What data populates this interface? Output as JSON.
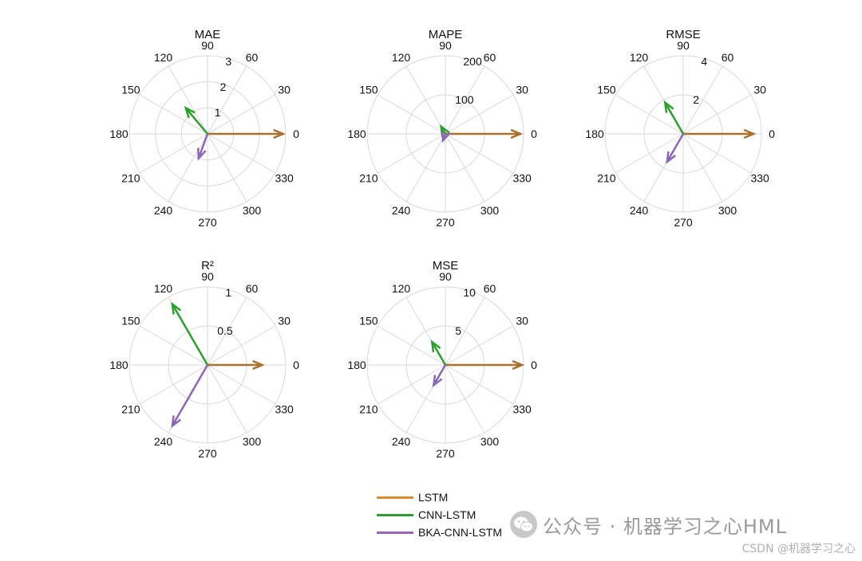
{
  "chart_data": [
    {
      "type": "polar-compass",
      "title": "MAE",
      "rlim": [
        0,
        3
      ],
      "rticks": [
        1,
        2,
        3
      ],
      "rtick_labels": [
        "1",
        "2",
        "3"
      ],
      "theta_ticks": [
        "0",
        "30",
        "60",
        "90",
        "120",
        "150",
        "180",
        "210",
        "240",
        "270",
        "300",
        "330"
      ],
      "series": [
        {
          "name": "LSTM",
          "angle_deg": 0,
          "value": 2.9
        },
        {
          "name": "CNN-LSTM",
          "angle_deg": 130,
          "value": 1.3
        },
        {
          "name": "BKA-CNN-LSTM",
          "angle_deg": 250,
          "value": 1.0
        }
      ]
    },
    {
      "type": "polar-compass",
      "title": "MAPE",
      "rlim": [
        0,
        200
      ],
      "rticks": [
        100,
        200
      ],
      "rtick_labels": [
        "100",
        "200"
      ],
      "theta_ticks": [
        "0",
        "30",
        "60",
        "90",
        "120",
        "150",
        "180",
        "210",
        "240",
        "270",
        "300",
        "330"
      ],
      "series": [
        {
          "name": "LSTM",
          "angle_deg": 0,
          "value": 192
        },
        {
          "name": "CNN-LSTM",
          "angle_deg": 120,
          "value": 22
        },
        {
          "name": "BKA-CNN-LSTM",
          "angle_deg": 250,
          "value": 18
        }
      ]
    },
    {
      "type": "polar-compass",
      "title": "RMSE",
      "rlim": [
        0,
        4
      ],
      "rticks": [
        2,
        4
      ],
      "rtick_labels": [
        "2",
        "4"
      ],
      "theta_ticks": [
        "0",
        "30",
        "60",
        "90",
        "120",
        "150",
        "180",
        "210",
        "240",
        "270",
        "300",
        "330"
      ],
      "series": [
        {
          "name": "LSTM",
          "angle_deg": 0,
          "value": 3.6
        },
        {
          "name": "CNN-LSTM",
          "angle_deg": 120,
          "value": 1.85
        },
        {
          "name": "BKA-CNN-LSTM",
          "angle_deg": 240,
          "value": 1.65
        }
      ]
    },
    {
      "type": "polar-compass",
      "title": "R²",
      "rlim": [
        0,
        1
      ],
      "rticks": [
        0.5,
        1
      ],
      "rtick_labels": [
        "0.5",
        "1"
      ],
      "theta_ticks": [
        "0",
        "30",
        "60",
        "90",
        "120",
        "150",
        "180",
        "210",
        "240",
        "270",
        "300",
        "330"
      ],
      "series": [
        {
          "name": "LSTM",
          "angle_deg": 0,
          "value": 0.7
        },
        {
          "name": "CNN-LSTM",
          "angle_deg": 120,
          "value": 0.9
        },
        {
          "name": "BKA-CNN-LSTM",
          "angle_deg": 240,
          "value": 0.9
        }
      ]
    },
    {
      "type": "polar-compass",
      "title": "MSE",
      "rlim": [
        0,
        10
      ],
      "rticks": [
        5,
        10
      ],
      "rtick_labels": [
        "5",
        "10"
      ],
      "theta_ticks": [
        "0",
        "30",
        "60",
        "90",
        "120",
        "150",
        "180",
        "210",
        "240",
        "270",
        "300",
        "330"
      ],
      "series": [
        {
          "name": "LSTM",
          "angle_deg": 0,
          "value": 9.8
        },
        {
          "name": "CNN-LSTM",
          "angle_deg": 120,
          "value": 3.4
        },
        {
          "name": "BKA-CNN-LSTM",
          "angle_deg": 240,
          "value": 3.0
        }
      ]
    }
  ],
  "legend": {
    "placement": "bottom-center",
    "items": [
      {
        "label": "LSTM",
        "color": "#e08a2a"
      },
      {
        "label": "CNN-LSTM",
        "color": "#2ca02c"
      },
      {
        "label": "BKA-CNN-LSTM",
        "color": "#9467bd"
      }
    ]
  },
  "colors": {
    "LSTM": "#a8702c",
    "CNN-LSTM": "#2ca02c",
    "BKA-CNN-LSTM": "#8c66b8",
    "grid": "#d9d9d9",
    "text": "#111111"
  },
  "watermark": {
    "icon": "wechat-icon",
    "text": "公众号 · 机器学习之心HML"
  },
  "footer_credit": "CSDN @机器学习之心"
}
